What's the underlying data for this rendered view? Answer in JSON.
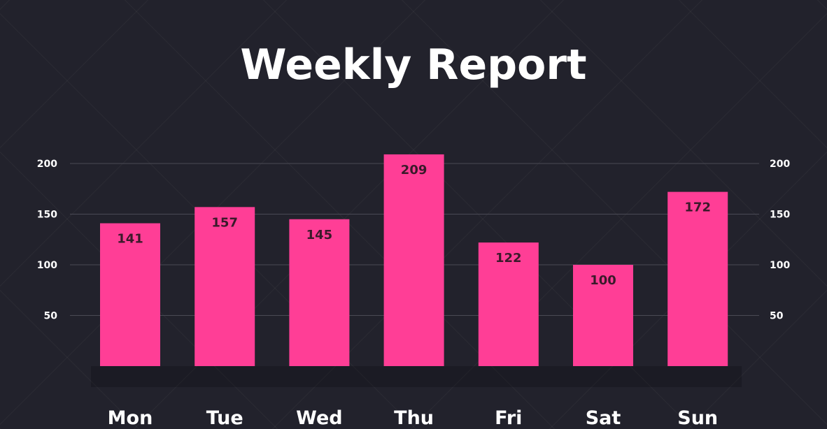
{
  "chart_data": {
    "type": "bar",
    "title": "Weekly Report",
    "categories": [
      "Mon",
      "Tue",
      "Wed",
      "Thu",
      "Fri",
      "Sat",
      "Sun"
    ],
    "values": [
      141,
      157,
      145,
      209,
      122,
      100,
      172
    ],
    "yticks": [
      50,
      100,
      150,
      200
    ],
    "ylim": [
      0,
      200
    ],
    "grid": true,
    "bar_color": "#ff3e96",
    "background": "#22222c"
  }
}
